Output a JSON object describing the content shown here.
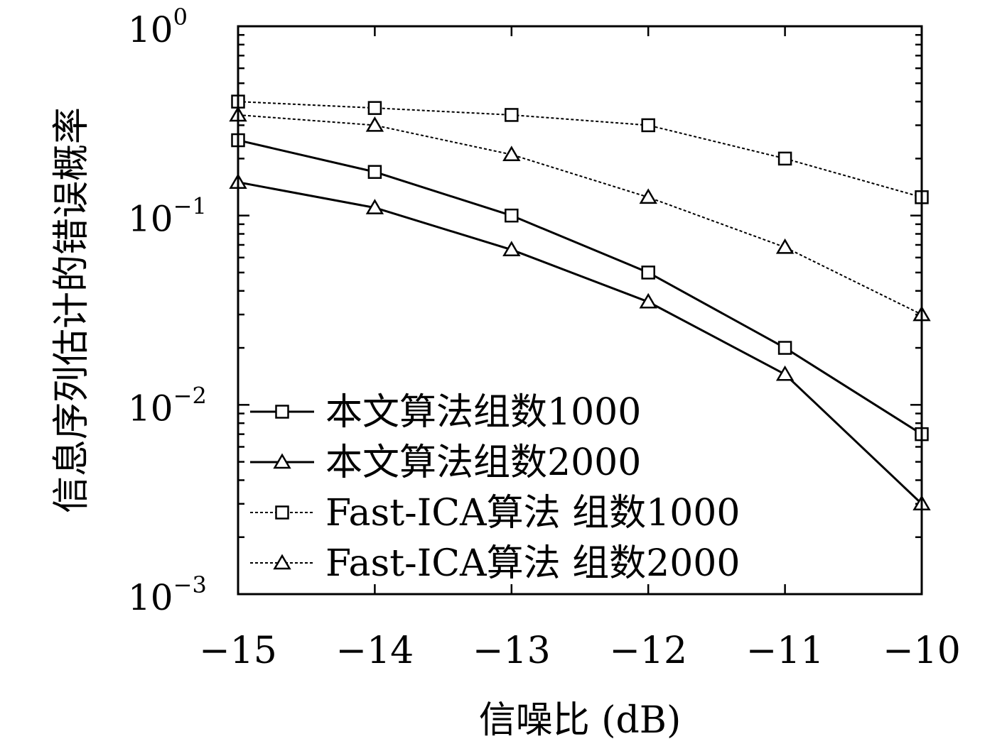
{
  "chart_data": {
    "type": "line",
    "xlabel": "信噪比 (dB)",
    "ylabel": "信息序列估计的错误概率",
    "x": [
      -15,
      -14,
      -13,
      -12,
      -11,
      -10
    ],
    "xlim": [
      -15,
      -10
    ],
    "ylim": [
      0.001,
      1
    ],
    "yscale": "log",
    "x_tick_labels": [
      "−15",
      "−14",
      "−13",
      "−12",
      "−11",
      "−10"
    ],
    "y_tick_labels": [
      {
        "base": "10",
        "exp": "0"
      },
      {
        "base": "10",
        "exp": "−1"
      },
      {
        "base": "10",
        "exp": "−2"
      },
      {
        "base": "10",
        "exp": "−3"
      }
    ],
    "grid": false,
    "legend_position": "bottom-left",
    "series": [
      {
        "name": "本文算法组数1000",
        "marker": "square",
        "line": "solid",
        "values": [
          0.25,
          0.17,
          0.1,
          0.05,
          0.02,
          0.007
        ]
      },
      {
        "name": "本文算法组数2000",
        "marker": "triangle",
        "line": "solid",
        "values": [
          0.15,
          0.11,
          0.066,
          0.035,
          0.0145,
          0.003
        ]
      },
      {
        "name": "Fast-ICA算法 组数1000",
        "marker": "square",
        "line": "dotted",
        "values": [
          0.4,
          0.37,
          0.34,
          0.3,
          0.2,
          0.125
        ]
      },
      {
        "name": "Fast-ICA算法 组数2000",
        "marker": "triangle",
        "line": "dotted",
        "values": [
          0.34,
          0.3,
          0.21,
          0.125,
          0.068,
          0.03
        ]
      }
    ]
  }
}
